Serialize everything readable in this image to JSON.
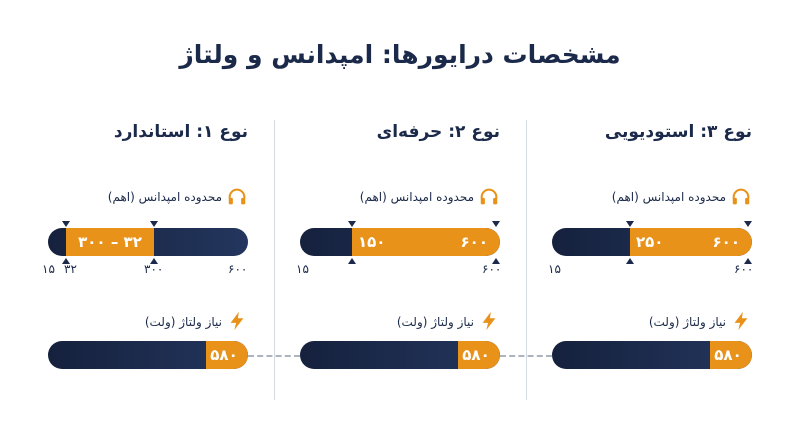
{
  "title": "مشخصات درایورها: امپدانس و ولتاژ",
  "impedance_label": "محدوده امپدانس (اهم)",
  "voltage_label": "نیاز ولتاژ (ولت)",
  "icons": {
    "impedance": "headphones-icon",
    "voltage": "lightning-bolt-icon"
  },
  "colors": {
    "navy": "#1b2a4a",
    "accent": "#e9921a"
  },
  "columns": [
    {
      "title": "نوع ۱: استاندارد",
      "impedance": {
        "min": 32,
        "max": 300,
        "scale_min": 15,
        "scale_max": 600,
        "range_text": "۳۰۰ – ۳۲"
      },
      "ticks": {
        "scale_min": "۱۵",
        "low": "۳۲",
        "high": "۳۰۰",
        "scale_max": "۶۰۰"
      },
      "voltage": {
        "value": 580,
        "text": "۵۸۰"
      }
    },
    {
      "title": "نوع ۲: حرفه‌ای",
      "impedance": {
        "min": 150,
        "max": 600,
        "scale_min": 15,
        "scale_max": 600,
        "min_text": "۱۵۰",
        "max_text": "۶۰۰"
      },
      "ticks": {
        "scale_min": "۱۵",
        "scale_max": "۶۰۰"
      },
      "voltage": {
        "value": 580,
        "text": "۵۸۰"
      }
    },
    {
      "title": "نوع ۳: استودیویی",
      "impedance": {
        "min": 250,
        "max": 600,
        "scale_min": 15,
        "scale_max": 600,
        "min_text": "۲۵۰",
        "max_text": "۶۰۰"
      },
      "ticks": {
        "scale_min": "۱۵",
        "scale_max": "۶۰۰"
      },
      "voltage": {
        "value": 580,
        "text": "۵۸۰"
      }
    }
  ]
}
